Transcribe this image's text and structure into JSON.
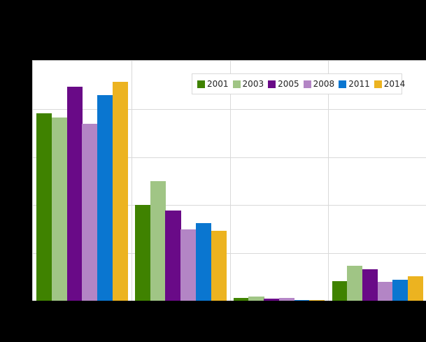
{
  "chart_data": {
    "type": "bar",
    "title": "",
    "xlabel": "",
    "ylabel": "",
    "categories": [
      "",
      "",
      "",
      ""
    ],
    "ylim": [
      0,
      50
    ],
    "yticks": [
      0,
      10,
      20,
      30,
      40,
      50
    ],
    "grid": true,
    "legend_position": "top-right-inside",
    "series": [
      {
        "name": "2001",
        "color": "#3f8200",
        "values": [
          39.0,
          19.9,
          0.6,
          4.1
        ]
      },
      {
        "name": "2003",
        "color": "#a0c585",
        "values": [
          38.1,
          24.8,
          0.9,
          7.2
        ]
      },
      {
        "name": "2005",
        "color": "#690a87",
        "values": [
          44.5,
          18.8,
          0.4,
          6.5
        ]
      },
      {
        "name": "2008",
        "color": "#b385c5",
        "values": [
          36.8,
          14.9,
          0.6,
          3.9
        ]
      },
      {
        "name": "2011",
        "color": "#0a76d0",
        "values": [
          42.8,
          16.1,
          0.2,
          4.3
        ]
      },
      {
        "name": "2014",
        "color": "#ecb320",
        "values": [
          45.5,
          14.5,
          0.1,
          5.1
        ]
      }
    ]
  },
  "legend": {
    "items": [
      {
        "label": "2001",
        "color": "#3f8200"
      },
      {
        "label": "2003",
        "color": "#a0c585"
      },
      {
        "label": "2005",
        "color": "#690a87"
      },
      {
        "label": "2008",
        "color": "#b385c5"
      },
      {
        "label": "2011",
        "color": "#0a76d0"
      },
      {
        "label": "2014",
        "color": "#ecb320"
      }
    ]
  }
}
